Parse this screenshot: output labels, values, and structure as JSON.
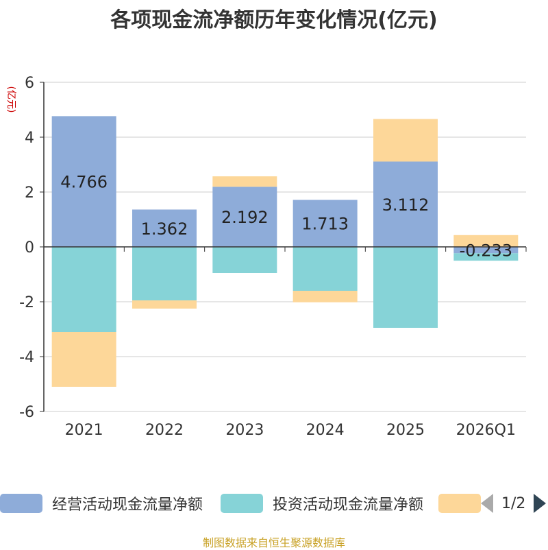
{
  "title": "各项现金流净额历年变化情况(亿元)",
  "source_note": "制图数据来自恒生聚源数据库",
  "legend_page": "1/2",
  "chart_data": {
    "type": "bar",
    "stacked": true,
    "title": "各项现金流净额历年变化情况(亿元)",
    "ylabel": "(亿元)",
    "xlabel": "",
    "categories": [
      "2021",
      "2022",
      "2023",
      "2024",
      "2025",
      "2026Q1"
    ],
    "ylim": [
      -6,
      6
    ],
    "yticks": [
      -6,
      -4,
      -2,
      0,
      2,
      4,
      6
    ],
    "grid": true,
    "legend_position": "bottom",
    "series": [
      {
        "name": "经营活动现金流量净额",
        "values": [
          4.766,
          1.362,
          2.192,
          1.713,
          3.112,
          -0.233
        ],
        "labels": [
          "4.766",
          "1.362",
          "2.192",
          "1.713",
          "3.112",
          "-0.233"
        ],
        "color": "#8eacd9"
      },
      {
        "name": "投资活动现金流量净额",
        "values": [
          -3.1,
          -1.95,
          -0.95,
          -1.6,
          -2.95,
          -0.27
        ],
        "color": "#86d3d7"
      },
      {
        "name": "",
        "values": [
          -2.0,
          -0.3,
          0.38,
          -0.42,
          1.55,
          0.43
        ],
        "color": "#fdd799"
      }
    ]
  }
}
